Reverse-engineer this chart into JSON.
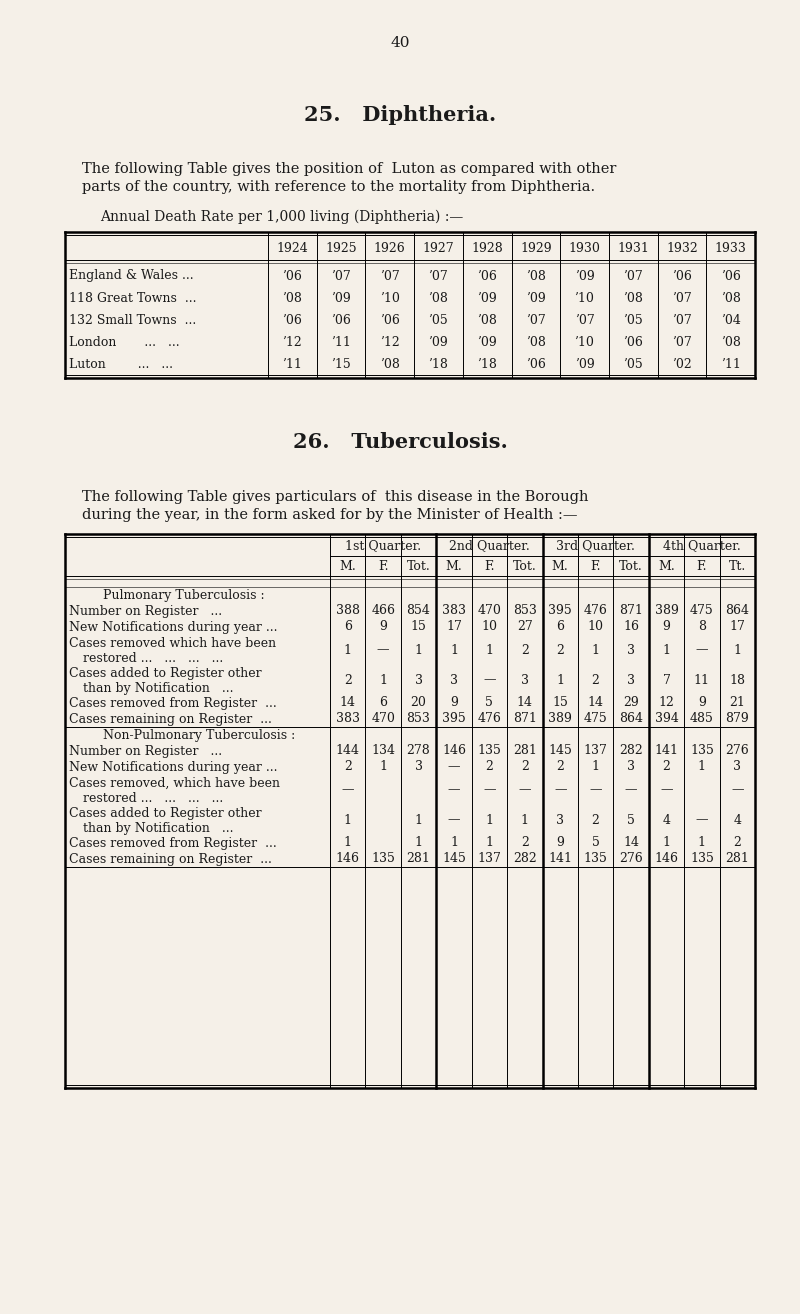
{
  "bg_color": "#f5f0e8",
  "text_color": "#1a1a1a",
  "page_number": "40",
  "section25_title": "25.   Diphtheria.",
  "section25_para1": "The following Table gives the position of  Luton as compared with other",
  "section25_para2": "parts of the country, with reference to the mortality from Diphtheria.",
  "section25_subtitle": "Annual Death Rate per 1,000 living (Diphtheria) :—",
  "diph_years": [
    "1924",
    "1925",
    "1926",
    "1927",
    "1928",
    "1929",
    "1930",
    "1931",
    "1932",
    "1933"
  ],
  "diph_rows": [
    [
      "England & Wales ...",
      "’06",
      "’07",
      "’07",
      "’07",
      "’06",
      "’08",
      "’09",
      "’07",
      "’06",
      "’06"
    ],
    [
      "118 Great Towns  ...",
      "’08",
      "’09",
      "’10",
      "’08",
      "’09",
      "’09",
      "’10",
      "’08",
      "’07",
      "’08"
    ],
    [
      "132 Small Towns  ...",
      "’06",
      "’06",
      "’06",
      "’05",
      "’08",
      "’07",
      "’07",
      "’05",
      "’07",
      "’04"
    ],
    [
      "London       ...   ...",
      "’12",
      "’11",
      "’12",
      "’09",
      "’09",
      "’08",
      "’10",
      "’06",
      "’07",
      "’08"
    ],
    [
      "Luton        ...   ...",
      "’11",
      "’15",
      "’08",
      "’18",
      "’18",
      "’06",
      "’09",
      "’05",
      "’02",
      "’11"
    ]
  ],
  "section26_title": "26.   Tuberculosis.",
  "section26_para1": "The following Table gives particulars of  this disease in the Borough",
  "section26_para2": "during the year, in the form asked for by the Minister of Health :—",
  "tb_col_headers": [
    "1st Quarter.",
    "2nd Quarter.",
    "3rd Quarter.",
    "4th Quarter."
  ],
  "tb_sub_headers": [
    "M.",
    "F.",
    "Tot.",
    "M.",
    "F.",
    "Tot.",
    "M.",
    "F.",
    "Tot.",
    "M.",
    "F.",
    "Tt."
  ],
  "tb_rows": [
    [
      "Pulmonary Tuberculosis :",
      "",
      "",
      "",
      "",
      "",
      "",
      "",
      "",
      "",
      "",
      "",
      ""
    ],
    [
      "Number on Register   ...",
      "388",
      "466",
      "854",
      "383",
      "470",
      "853",
      "395",
      "476",
      "871",
      "389",
      "475",
      "864"
    ],
    [
      "New Notifications during year ...",
      "6",
      "9",
      "15",
      "17",
      "10",
      "27",
      "6",
      "10",
      "16",
      "9",
      "8",
      "17"
    ],
    [
      "Cases removed which have been\nrestored ...   ...   ...   ...",
      "1",
      "—",
      "1",
      "1",
      "1",
      "2",
      "2",
      "1",
      "3",
      "1",
      "—",
      "1"
    ],
    [
      "Cases added to Register other\nthan by Notification   ...",
      "2",
      "1",
      "3",
      "3",
      "—",
      "3",
      "1",
      "2",
      "3",
      "7",
      "11",
      "18"
    ],
    [
      "Cases removed from Register  ...",
      "14",
      "6",
      "20",
      "9",
      "5",
      "14",
      "15",
      "14",
      "29",
      "12",
      "9",
      "21"
    ],
    [
      "Cases remaining on Register  ...",
      "383",
      "470",
      "853",
      "395",
      "476",
      "871",
      "389",
      "475",
      "864",
      "394",
      "485",
      "879"
    ],
    [
      "Non-Pulmonary Tuberculosis :",
      "",
      "",
      "",
      "",
      "",
      "",
      "",
      "",
      "",
      "",
      "",
      ""
    ],
    [
      "Number on Register   ...",
      "144",
      "134",
      "278",
      "146",
      "135",
      "281",
      "145",
      "137",
      "282",
      "141",
      "135",
      "276"
    ],
    [
      "New Notifications during year ...",
      "2",
      "1",
      "3",
      "—",
      "2",
      "2",
      "2",
      "1",
      "3",
      "2",
      "1",
      "3"
    ],
    [
      "Cases removed, which have been\nrestored ...   ...   ...   ...",
      "—",
      "",
      "",
      "—",
      "—",
      "—",
      "—",
      "—",
      "—",
      "—",
      "",
      "—"
    ],
    [
      "Cases added to Register other\nthan by Notification   ...",
      "1",
      "",
      "1",
      "—",
      "1",
      "1",
      "3",
      "2",
      "5",
      "4",
      "—",
      "4"
    ],
    [
      "Cases removed from Register  ...",
      "1",
      "",
      "1",
      "1",
      "1",
      "2",
      "9",
      "5",
      "14",
      "1",
      "1",
      "2"
    ],
    [
      "Cases remaining on Register  ...",
      "146",
      "135",
      "281",
      "145",
      "137",
      "282",
      "141",
      "135",
      "276",
      "146",
      "135",
      "281"
    ]
  ],
  "tb_row_heights": [
    16,
    16,
    16,
    30,
    30,
    16,
    16,
    16,
    16,
    16,
    30,
    30,
    16,
    16
  ]
}
